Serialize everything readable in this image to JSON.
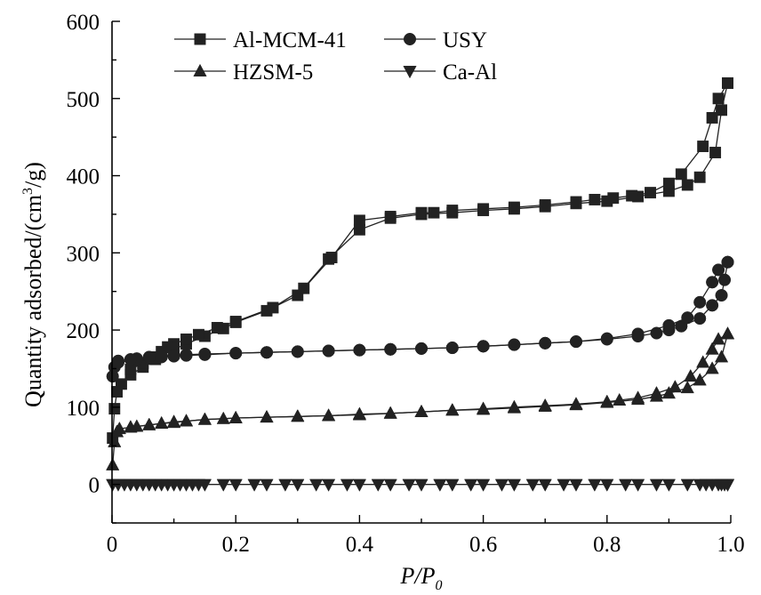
{
  "chart_data": {
    "type": "line",
    "xlabel": "P/P0",
    "xlabel_parts": {
      "main": "P/P",
      "sub": "0"
    },
    "ylabel": "Quantity adsorbed/(cm3/g)",
    "ylabel_parts": {
      "pre": "Quantity adsorbed/(cm",
      "sup": "3",
      "post": "/g)"
    },
    "xlim": [
      0,
      1.0
    ],
    "ylim": [
      -50,
      600
    ],
    "xticks": [
      0,
      0.2,
      0.4,
      0.6,
      0.8,
      1.0
    ],
    "xtick_labels": [
      "0",
      "0.2",
      "0.4",
      "0.6",
      "0.8",
      "1.0"
    ],
    "yticks": [
      0,
      100,
      200,
      300,
      400,
      500,
      600
    ],
    "ytick_labels": [
      "0",
      "100",
      "200",
      "300",
      "400",
      "500",
      "600"
    ],
    "grid": false,
    "legend_position": "top-left",
    "series": [
      {
        "name": "Al-MCM-41",
        "marker": "square",
        "adsorption": [
          [
            0.001,
            60
          ],
          [
            0.004,
            98
          ],
          [
            0.008,
            120
          ],
          [
            0.015,
            130
          ],
          [
            0.03,
            142
          ],
          [
            0.05,
            152
          ],
          [
            0.07,
            162
          ],
          [
            0.1,
            175
          ],
          [
            0.12,
            182
          ],
          [
            0.15,
            192
          ],
          [
            0.18,
            202
          ],
          [
            0.2,
            210
          ],
          [
            0.25,
            225
          ],
          [
            0.3,
            245
          ],
          [
            0.35,
            292
          ],
          [
            0.4,
            330
          ],
          [
            0.45,
            345
          ],
          [
            0.5,
            350
          ],
          [
            0.55,
            352
          ],
          [
            0.6,
            355
          ],
          [
            0.65,
            357
          ],
          [
            0.7,
            360
          ],
          [
            0.75,
            364
          ],
          [
            0.8,
            367
          ],
          [
            0.85,
            373
          ],
          [
            0.9,
            380
          ],
          [
            0.93,
            388
          ],
          [
            0.95,
            398
          ],
          [
            0.975,
            430
          ],
          [
            0.985,
            485
          ],
          [
            0.995,
            520
          ]
        ],
        "desorption": [
          [
            0.995,
            520
          ],
          [
            0.98,
            500
          ],
          [
            0.97,
            475
          ],
          [
            0.955,
            438
          ],
          [
            0.92,
            402
          ],
          [
            0.9,
            390
          ],
          [
            0.87,
            378
          ],
          [
            0.84,
            374
          ],
          [
            0.81,
            371
          ],
          [
            0.78,
            369
          ],
          [
            0.75,
            366
          ],
          [
            0.7,
            362
          ],
          [
            0.65,
            359
          ],
          [
            0.6,
            357
          ],
          [
            0.55,
            355
          ],
          [
            0.52,
            352
          ],
          [
            0.5,
            352
          ],
          [
            0.45,
            347
          ],
          [
            0.4,
            342
          ],
          [
            0.355,
            294
          ],
          [
            0.31,
            254
          ],
          [
            0.26,
            229
          ],
          [
            0.2,
            211
          ],
          [
            0.17,
            203
          ],
          [
            0.14,
            194
          ],
          [
            0.12,
            188
          ],
          [
            0.1,
            182
          ],
          [
            0.09,
            178
          ],
          [
            0.08,
            172
          ],
          [
            0.065,
            165
          ],
          [
            0.05,
            157
          ],
          [
            0.03,
            149
          ]
        ]
      },
      {
        "name": "USY",
        "marker": "circle",
        "adsorption": [
          [
            0.001,
            140
          ],
          [
            0.004,
            152
          ],
          [
            0.01,
            158
          ],
          [
            0.04,
            161
          ],
          [
            0.06,
            163
          ],
          [
            0.08,
            165
          ],
          [
            0.1,
            166
          ],
          [
            0.12,
            167
          ],
          [
            0.15,
            168
          ],
          [
            0.2,
            170
          ],
          [
            0.25,
            171
          ],
          [
            0.3,
            172
          ],
          [
            0.35,
            173
          ],
          [
            0.4,
            174
          ],
          [
            0.45,
            175
          ],
          [
            0.5,
            176
          ],
          [
            0.55,
            177
          ],
          [
            0.6,
            179
          ],
          [
            0.65,
            181
          ],
          [
            0.7,
            183
          ],
          [
            0.75,
            185
          ],
          [
            0.8,
            188
          ],
          [
            0.85,
            192
          ],
          [
            0.88,
            196
          ],
          [
            0.9,
            200
          ],
          [
            0.92,
            205
          ],
          [
            0.95,
            215
          ],
          [
            0.97,
            232
          ],
          [
            0.985,
            245
          ],
          [
            0.99,
            265
          ],
          [
            0.995,
            288
          ]
        ],
        "desorption": [
          [
            0.995,
            288
          ],
          [
            0.98,
            278
          ],
          [
            0.97,
            262
          ],
          [
            0.95,
            236
          ],
          [
            0.93,
            216
          ],
          [
            0.9,
            206
          ],
          [
            0.85,
            195
          ],
          [
            0.8,
            189
          ],
          [
            0.75,
            185
          ],
          [
            0.7,
            183
          ],
          [
            0.65,
            181
          ],
          [
            0.6,
            179
          ],
          [
            0.55,
            177
          ],
          [
            0.5,
            176
          ],
          [
            0.45,
            175
          ],
          [
            0.4,
            174
          ],
          [
            0.35,
            173
          ],
          [
            0.3,
            172
          ],
          [
            0.25,
            171
          ],
          [
            0.2,
            170
          ],
          [
            0.15,
            169
          ],
          [
            0.12,
            168
          ],
          [
            0.1,
            167
          ],
          [
            0.08,
            166
          ],
          [
            0.06,
            165
          ],
          [
            0.04,
            163
          ],
          [
            0.03,
            162
          ],
          [
            0.01,
            160
          ]
        ]
      },
      {
        "name": "HZSM-5",
        "marker": "triangle-up",
        "adsorption": [
          [
            0.001,
            25
          ],
          [
            0.004,
            55
          ],
          [
            0.008,
            68
          ],
          [
            0.012,
            72
          ],
          [
            0.03,
            74
          ],
          [
            0.06,
            77
          ],
          [
            0.08,
            79
          ],
          [
            0.1,
            80
          ],
          [
            0.12,
            82
          ],
          [
            0.15,
            84
          ],
          [
            0.18,
            85
          ],
          [
            0.2,
            86
          ],
          [
            0.25,
            87
          ],
          [
            0.3,
            88
          ],
          [
            0.35,
            89
          ],
          [
            0.4,
            90
          ],
          [
            0.45,
            92
          ],
          [
            0.5,
            94
          ],
          [
            0.55,
            96
          ],
          [
            0.6,
            97
          ],
          [
            0.65,
            99
          ],
          [
            0.7,
            101
          ],
          [
            0.75,
            103
          ],
          [
            0.8,
            106
          ],
          [
            0.85,
            110
          ],
          [
            0.88,
            114
          ],
          [
            0.9,
            118
          ],
          [
            0.93,
            125
          ],
          [
            0.95,
            135
          ],
          [
            0.97,
            150
          ],
          [
            0.985,
            165
          ],
          [
            0.995,
            195
          ]
        ],
        "desorption": [
          [
            0.995,
            195
          ],
          [
            0.98,
            188
          ],
          [
            0.97,
            175
          ],
          [
            0.955,
            158
          ],
          [
            0.935,
            140
          ],
          [
            0.91,
            126
          ],
          [
            0.88,
            118
          ],
          [
            0.85,
            112
          ],
          [
            0.82,
            109
          ],
          [
            0.8,
            107
          ],
          [
            0.75,
            104
          ],
          [
            0.7,
            102
          ],
          [
            0.65,
            100
          ],
          [
            0.6,
            98
          ],
          [
            0.55,
            96
          ],
          [
            0.5,
            94
          ],
          [
            0.45,
            92
          ],
          [
            0.4,
            91
          ],
          [
            0.35,
            89
          ],
          [
            0.3,
            88
          ],
          [
            0.25,
            87
          ],
          [
            0.2,
            86
          ],
          [
            0.15,
            84
          ],
          [
            0.12,
            82
          ],
          [
            0.1,
            81
          ],
          [
            0.08,
            79
          ],
          [
            0.06,
            77
          ],
          [
            0.04,
            75
          ],
          [
            0.03,
            74
          ]
        ]
      },
      {
        "name": "Ca-Al",
        "marker": "triangle-down",
        "adsorption": [
          [
            0.001,
            0
          ],
          [
            0.01,
            0
          ],
          [
            0.03,
            0
          ],
          [
            0.05,
            0
          ],
          [
            0.07,
            0
          ],
          [
            0.09,
            0
          ],
          [
            0.11,
            0
          ],
          [
            0.13,
            0
          ],
          [
            0.15,
            0
          ],
          [
            0.2,
            0
          ],
          [
            0.25,
            0
          ],
          [
            0.3,
            0
          ],
          [
            0.35,
            0
          ],
          [
            0.4,
            0
          ],
          [
            0.45,
            0
          ],
          [
            0.5,
            0
          ],
          [
            0.55,
            0
          ],
          [
            0.6,
            0
          ],
          [
            0.65,
            0
          ],
          [
            0.7,
            0
          ],
          [
            0.75,
            0
          ],
          [
            0.8,
            0
          ],
          [
            0.85,
            0
          ],
          [
            0.9,
            0
          ],
          [
            0.95,
            0
          ],
          [
            0.97,
            0
          ],
          [
            0.98,
            0
          ],
          [
            0.99,
            0
          ],
          [
            0.995,
            0
          ]
        ],
        "desorption": [
          [
            0.995,
            0
          ],
          [
            0.985,
            0
          ],
          [
            0.96,
            0
          ],
          [
            0.93,
            0
          ],
          [
            0.88,
            0
          ],
          [
            0.83,
            0
          ],
          [
            0.78,
            0
          ],
          [
            0.73,
            0
          ],
          [
            0.68,
            0
          ],
          [
            0.63,
            0
          ],
          [
            0.58,
            0
          ],
          [
            0.53,
            0
          ],
          [
            0.48,
            0
          ],
          [
            0.43,
            0
          ],
          [
            0.38,
            0
          ],
          [
            0.33,
            0
          ],
          [
            0.28,
            0
          ],
          [
            0.23,
            0
          ],
          [
            0.18,
            0
          ],
          [
            0.14,
            0
          ],
          [
            0.12,
            0
          ],
          [
            0.1,
            0
          ],
          [
            0.08,
            0
          ],
          [
            0.06,
            0
          ],
          [
            0.04,
            0
          ],
          [
            0.02,
            0
          ]
        ]
      }
    ]
  }
}
